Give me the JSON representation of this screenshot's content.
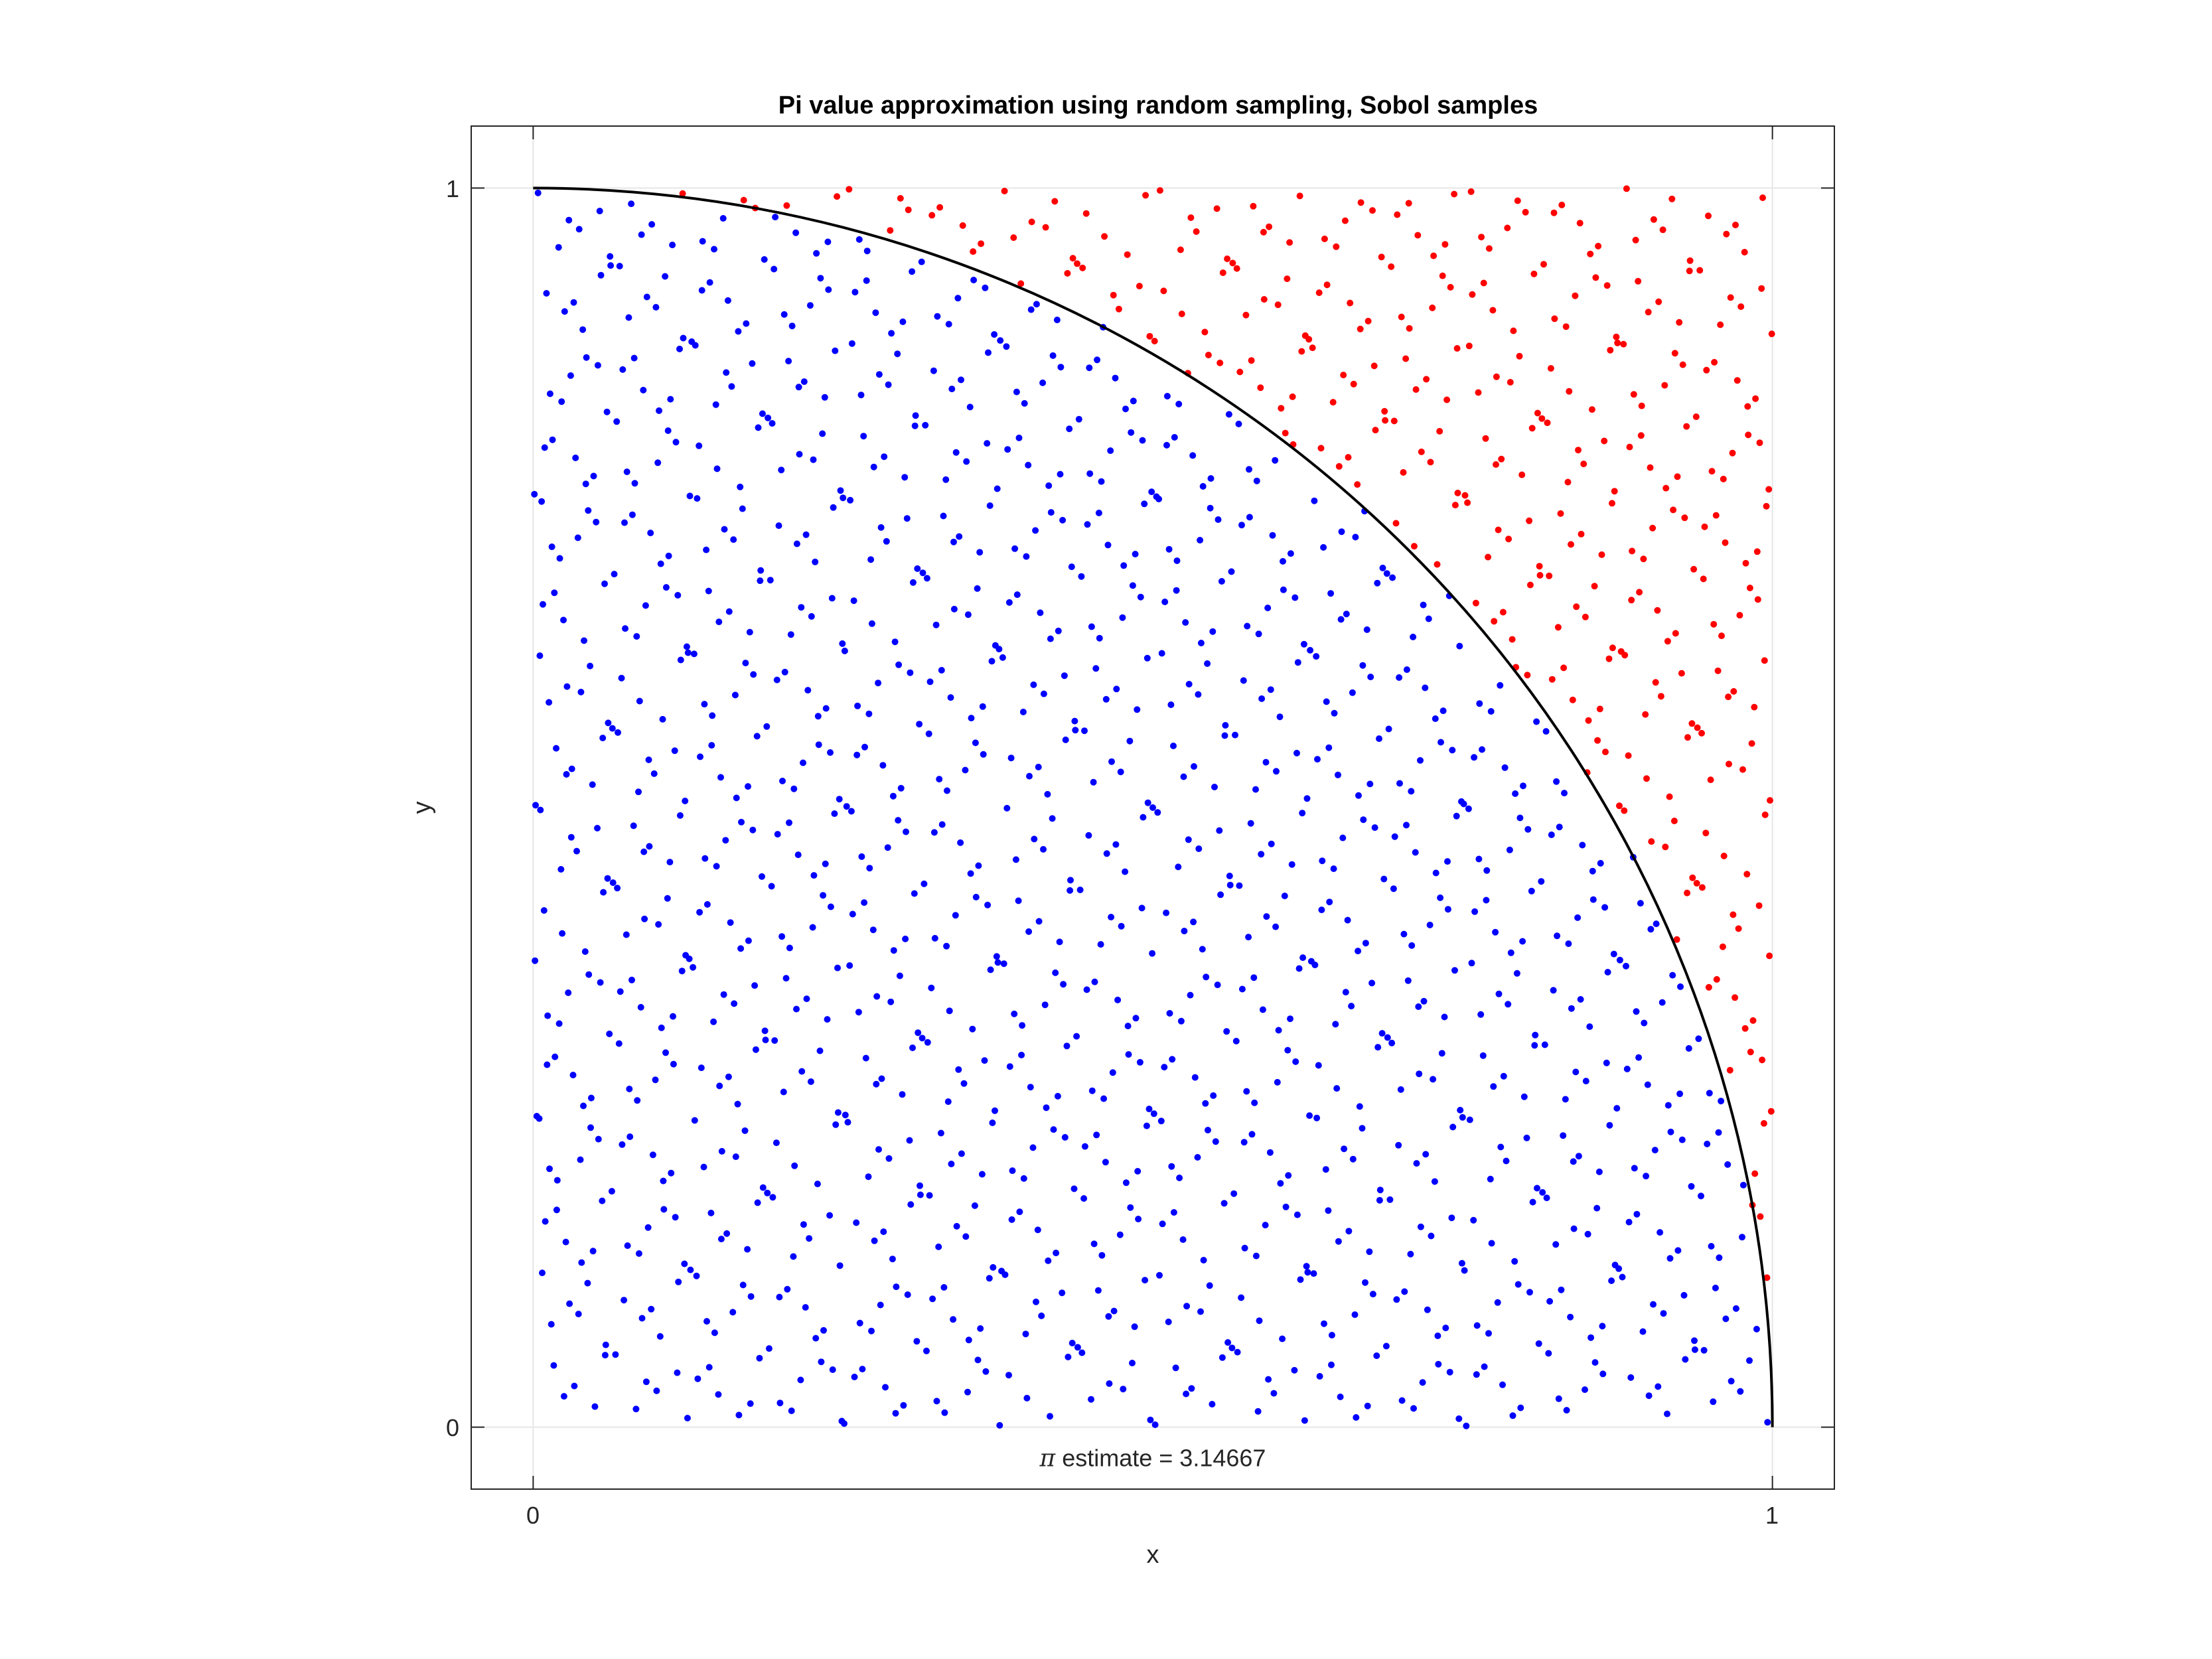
{
  "chart_data": {
    "type": "scatter",
    "title": "Pi value approximation using random sampling, Sobol samples",
    "xlabel": "x",
    "ylabel": "y",
    "xlim": [
      -0.05,
      1.05
    ],
    "ylim": [
      -0.05,
      1.05
    ],
    "xticks": [
      {
        "value": 0,
        "label": "0"
      },
      {
        "value": 1,
        "label": "1"
      }
    ],
    "yticks": [
      {
        "value": 0,
        "label": "0"
      },
      {
        "value": 1,
        "label": "1"
      }
    ],
    "grid": true,
    "sampling": "sobol",
    "num_points": 1500,
    "series": [
      {
        "role": "inside",
        "color": "#0000ff"
      },
      {
        "role": "outside",
        "color": "#ff0000"
      },
      {
        "role": "boundary",
        "shape": "quarter-circle",
        "radius": 1,
        "color": "#000000"
      }
    ],
    "annotation": {
      "prefix": "π",
      "text": " estimate = 3.14667",
      "x": 0.5,
      "y": -0.025
    }
  }
}
